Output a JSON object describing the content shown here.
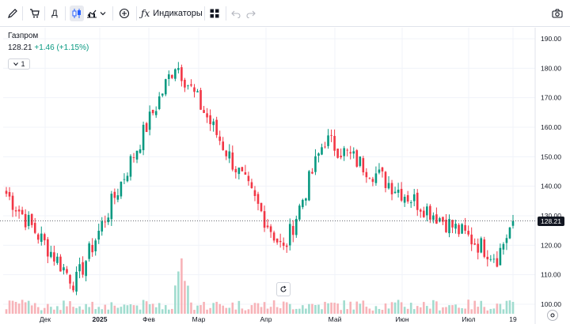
{
  "toolbar": {
    "indicators_label": "Индикаторы"
  },
  "legend": {
    "title": "Газпром",
    "price": "128.21",
    "change": "+1.46 (+1.15%)",
    "collapse_count": "1"
  },
  "last_price_label": "128.21",
  "colors": {
    "up": "#089981",
    "down": "#f23645",
    "up_volume": "#a1dccf",
    "down_volume": "#f7b3b8"
  },
  "chart_data": {
    "type": "candlestick",
    "symbol": "Газпром",
    "y_ticks": [
      "190.00",
      "180.00",
      "170.00",
      "160.00",
      "150.00",
      "140.00",
      "130.00",
      "120.00",
      "110.00",
      "100.00"
    ],
    "ylim": [
      97,
      193
    ],
    "x_ticks": [
      "Дек",
      "2025",
      "Фев",
      "Мар",
      "Апр",
      "Май",
      "Июн",
      "Июл",
      "19"
    ],
    "last_price": 128.21,
    "key_points": [
      {
        "label": "start",
        "value": 137.5
      },
      {
        "label": "low_dec",
        "value": 107
      },
      {
        "label": "high_feb",
        "value": 182
      },
      {
        "label": "low_apr",
        "value": 118
      },
      {
        "label": "high_may",
        "value": 156
      },
      {
        "label": "low_jul",
        "value": 116
      },
      {
        "label": "last",
        "value": 128.21
      }
    ]
  }
}
